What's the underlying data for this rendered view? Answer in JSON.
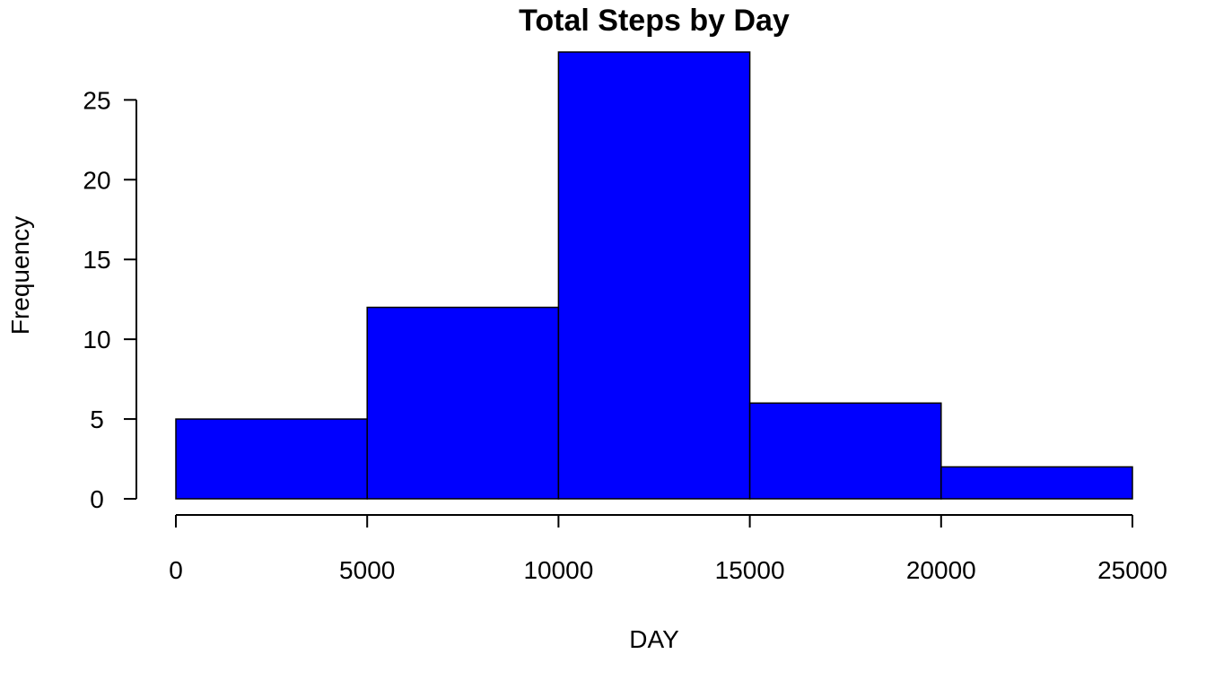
{
  "chart_data": {
    "type": "bar",
    "subtype": "histogram",
    "title": "Total Steps by Day",
    "xlabel": "DAY",
    "ylabel": "Frequency",
    "bins": [
      {
        "start": 0,
        "end": 5000,
        "count": 5
      },
      {
        "start": 5000,
        "end": 10000,
        "count": 12
      },
      {
        "start": 10000,
        "end": 15000,
        "count": 28
      },
      {
        "start": 15000,
        "end": 20000,
        "count": 6
      },
      {
        "start": 20000,
        "end": 25000,
        "count": 2
      }
    ],
    "xlim": [
      0,
      25000
    ],
    "ylim": [
      0,
      28
    ],
    "x_ticks": [
      0,
      5000,
      10000,
      15000,
      20000,
      25000
    ],
    "y_ticks": [
      0,
      5,
      10,
      15,
      20,
      25
    ],
    "bar_color": "#0000ff",
    "border_color": "#000000",
    "grid": false,
    "legend": "none"
  }
}
